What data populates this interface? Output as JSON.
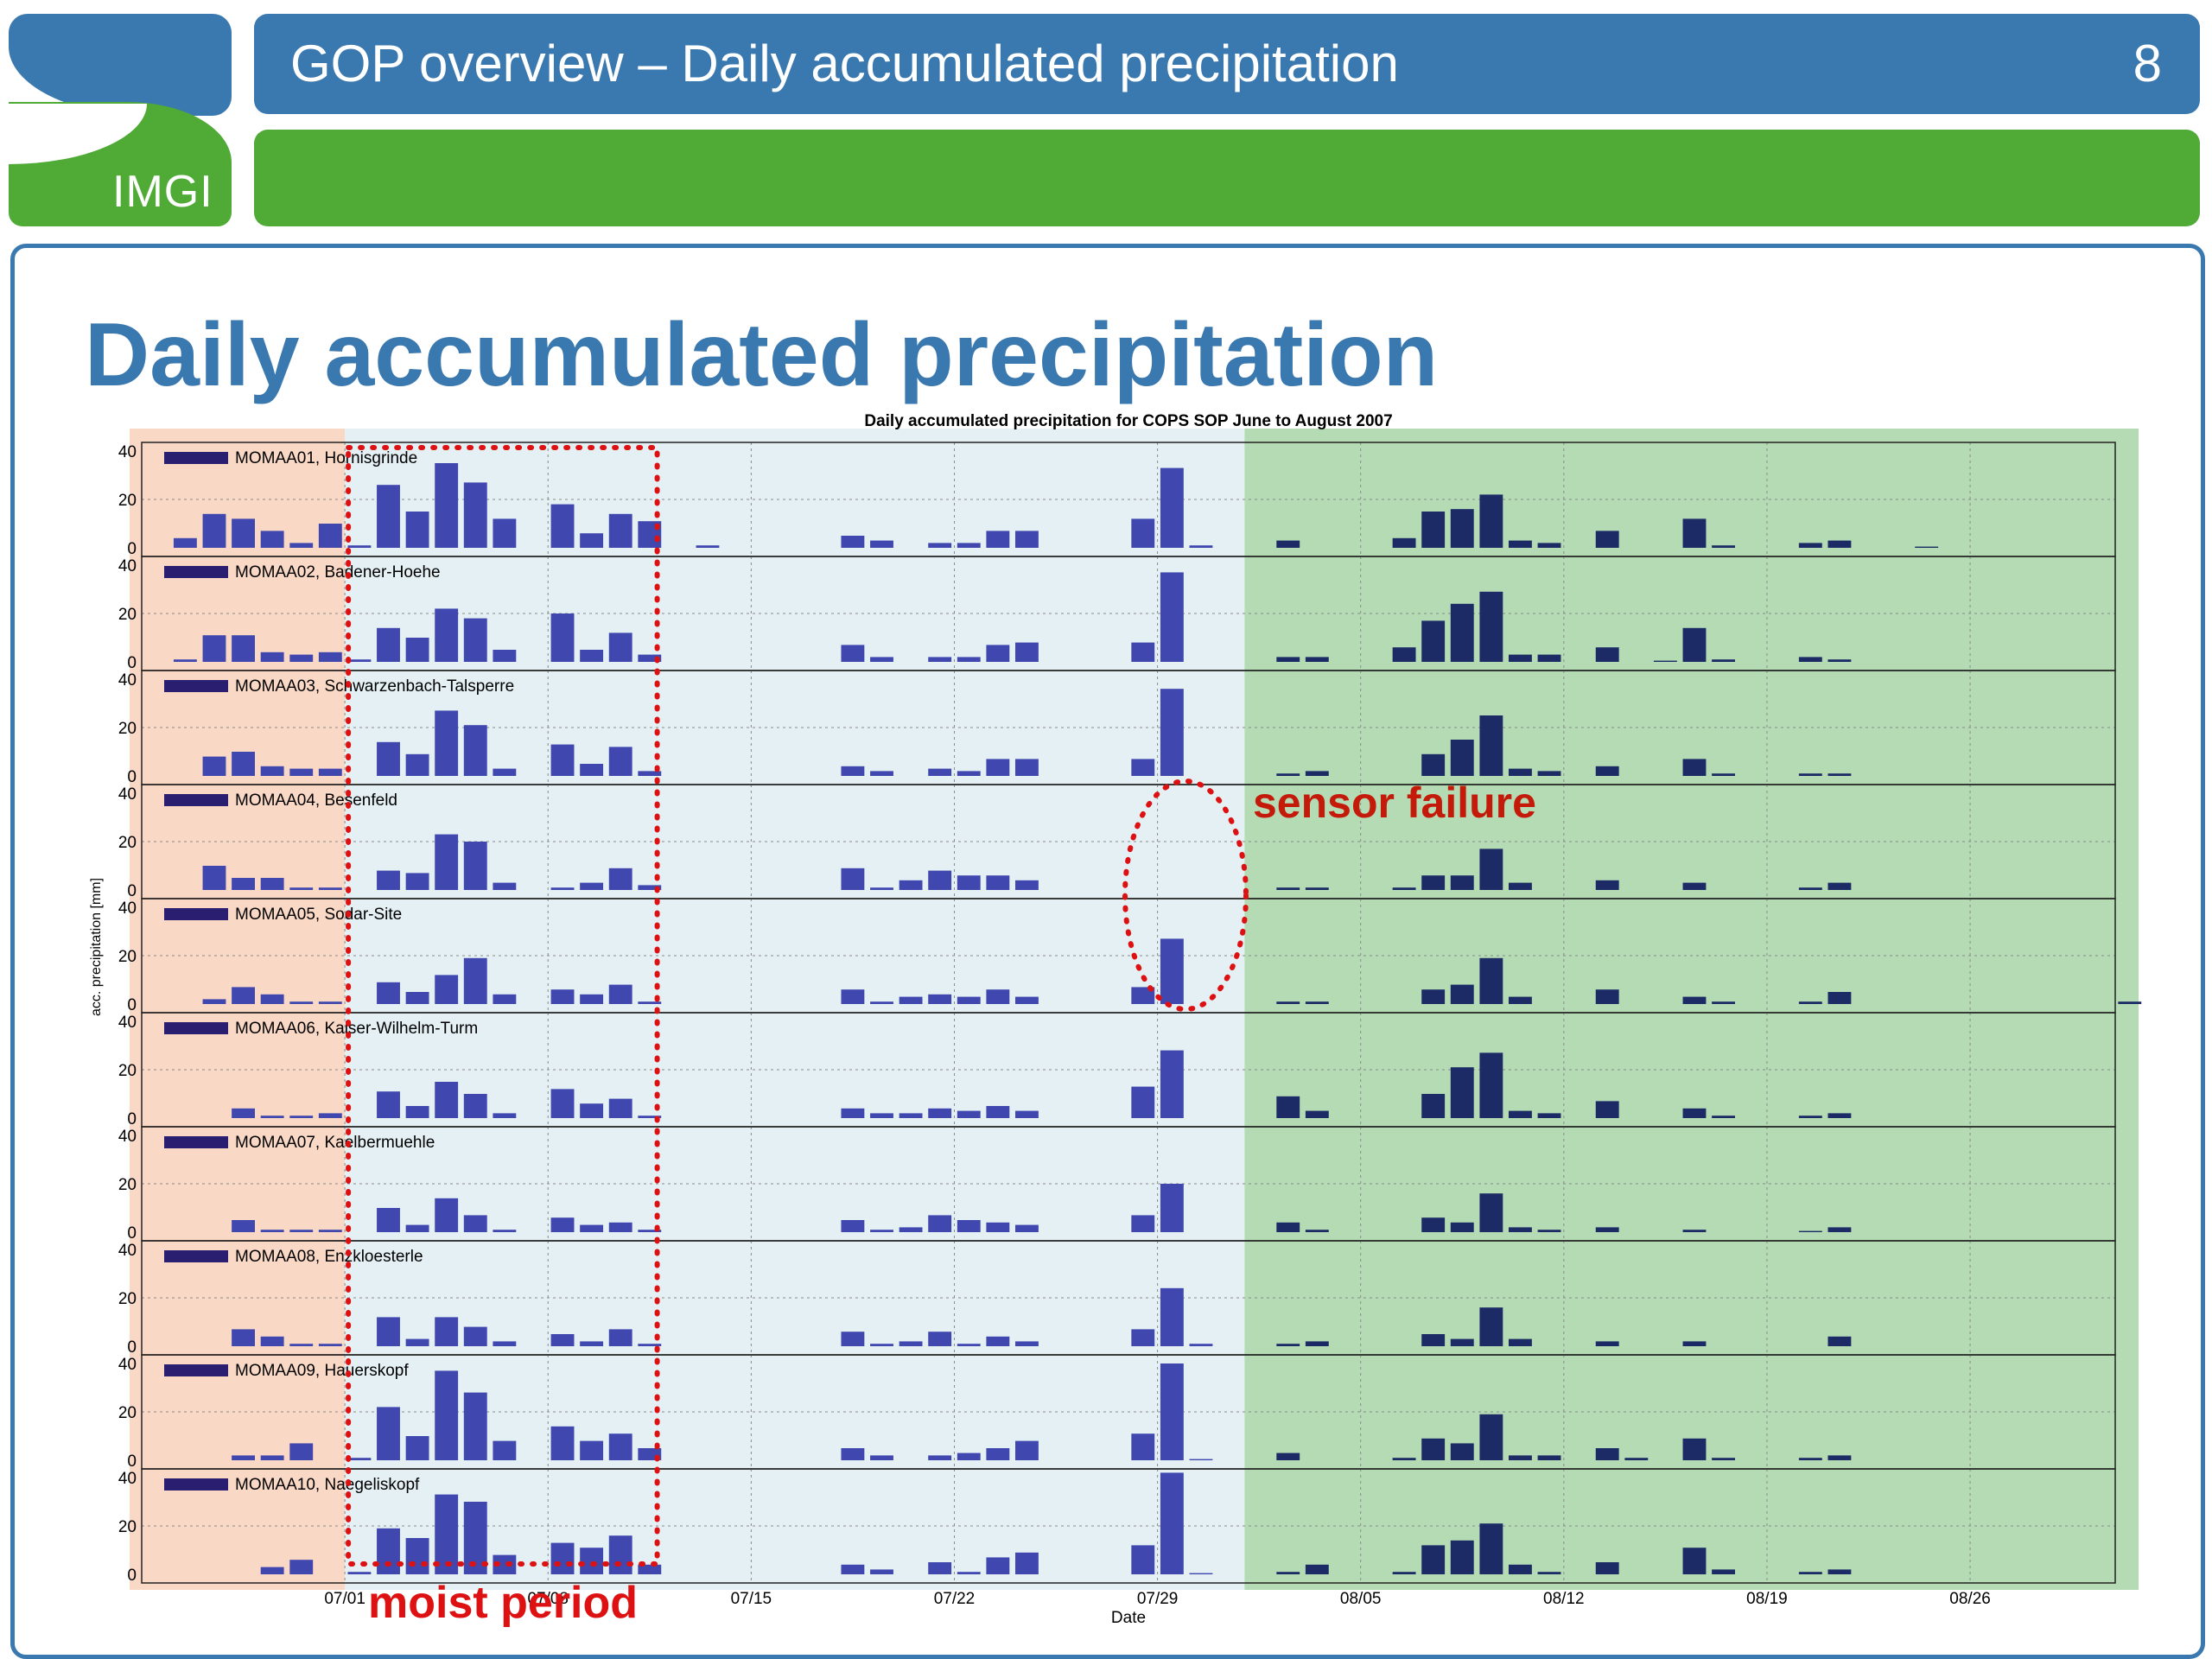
{
  "header": {
    "logo_text": "IMGI",
    "title": "GOP overview – Daily accumulated precipitation",
    "slide_number": "8"
  },
  "heading": "Daily accumulated precipitation",
  "annotations": {
    "sensor_failure": "sensor failure",
    "moist_period": "moist period"
  },
  "colors": {
    "brand_blue": "#3a78b0",
    "brand_green": "#4faa36",
    "bar_fill": "#4048b0",
    "bar_fill_dark": "#1c2a66",
    "legend_swatch": "#2a1e70",
    "shade_june": "#fad8c6",
    "shade_july": "#e5f0f5",
    "shade_august": "#b4dbb4",
    "annotation_red": "#dd1111"
  },
  "chart_data": {
    "type": "bar",
    "title": "Daily accumulated precipitation for COPS SOP June to August 2007",
    "xlabel": "Date",
    "ylabel": "acc. precipitation [mm]",
    "ylim": [
      0,
      40
    ],
    "yticks": [
      0,
      20,
      40
    ],
    "xticks": [
      "07/01",
      "07/08",
      "07/15",
      "07/22",
      "07/29",
      "08/05",
      "08/12",
      "08/19",
      "08/26"
    ],
    "grid": true,
    "x_start": "2007-06-24",
    "x_end": "2007-08-31",
    "shaded_periods": [
      {
        "start": "2007-06-24",
        "end": "2007-07-01",
        "color": "shade_june"
      },
      {
        "start": "2007-07-01",
        "end": "2007-08-01",
        "color": "shade_july"
      },
      {
        "start": "2007-08-01",
        "end": "2007-08-31",
        "color": "shade_august"
      }
    ],
    "moist_period_box": {
      "start": "2007-07-01",
      "end": "2007-07-12"
    },
    "series": [
      {
        "name": "MOMAA01, Hornisgrinde",
        "values": {
          "2007-06-25": 4,
          "2007-06-26": 14,
          "2007-06-27": 12,
          "2007-06-28": 7,
          "2007-06-29": 2,
          "2007-06-30": 10,
          "2007-07-01": 1,
          "2007-07-02": 26,
          "2007-07-03": 15,
          "2007-07-04": 35,
          "2007-07-05": 27,
          "2007-07-06": 12,
          "2007-07-08": 18,
          "2007-07-09": 6,
          "2007-07-10": 14,
          "2007-07-11": 11,
          "2007-07-13": 1,
          "2007-07-18": 5,
          "2007-07-19": 3,
          "2007-07-21": 2,
          "2007-07-22": 2,
          "2007-07-23": 7,
          "2007-07-24": 7,
          "2007-07-28": 12,
          "2007-07-29": 33,
          "2007-07-30": 1,
          "2007-08-02": 3,
          "2007-08-06": 4,
          "2007-08-07": 15,
          "2007-08-08": 16,
          "2007-08-09": 22,
          "2007-08-10": 3,
          "2007-08-11": 2,
          "2007-08-13": 7,
          "2007-08-16": 12,
          "2007-08-17": 1,
          "2007-08-20": 2,
          "2007-08-21": 3,
          "2007-08-24": 0.5
        }
      },
      {
        "name": "MOMAA02, Badener-Hoehe",
        "values": {
          "2007-06-25": 1,
          "2007-06-26": 11,
          "2007-06-27": 11,
          "2007-06-28": 4,
          "2007-06-29": 3,
          "2007-06-30": 4,
          "2007-07-01": 1,
          "2007-07-02": 14,
          "2007-07-03": 10,
          "2007-07-04": 22,
          "2007-07-05": 18,
          "2007-07-06": 5,
          "2007-07-08": 20,
          "2007-07-09": 5,
          "2007-07-10": 12,
          "2007-07-11": 3,
          "2007-07-18": 7,
          "2007-07-19": 2,
          "2007-07-21": 2,
          "2007-07-22": 2,
          "2007-07-23": 7,
          "2007-07-24": 8,
          "2007-07-28": 8,
          "2007-07-29": 37,
          "2007-08-02": 2,
          "2007-08-03": 2,
          "2007-08-06": 6,
          "2007-08-07": 17,
          "2007-08-08": 24,
          "2007-08-09": 29,
          "2007-08-10": 3,
          "2007-08-11": 3,
          "2007-08-13": 6,
          "2007-08-15": 0.5,
          "2007-08-16": 14,
          "2007-08-17": 1,
          "2007-08-20": 2,
          "2007-08-21": 1
        }
      },
      {
        "name": "MOMAA03, Schwarzenbach-Talsperre",
        "values": {
          "2007-06-26": 8,
          "2007-06-27": 10,
          "2007-06-28": 4,
          "2007-06-29": 3,
          "2007-06-30": 3,
          "2007-07-02": 14,
          "2007-07-03": 9,
          "2007-07-04": 27,
          "2007-07-05": 21,
          "2007-07-06": 3,
          "2007-07-08": 13,
          "2007-07-09": 5,
          "2007-07-10": 12,
          "2007-07-11": 2,
          "2007-07-18": 4,
          "2007-07-19": 2,
          "2007-07-21": 3,
          "2007-07-22": 2,
          "2007-07-23": 7,
          "2007-07-24": 7,
          "2007-07-28": 7,
          "2007-07-29": 36,
          "2007-08-02": 1,
          "2007-08-03": 2,
          "2007-08-07": 9,
          "2007-08-08": 15,
          "2007-08-09": 25,
          "2007-08-10": 3,
          "2007-08-11": 2,
          "2007-08-13": 4,
          "2007-08-16": 7,
          "2007-08-17": 1,
          "2007-08-20": 1,
          "2007-08-21": 1
        }
      },
      {
        "name": "MOMAA04, Besenfeld",
        "values": {
          "2007-06-26": 10,
          "2007-06-27": 5,
          "2007-06-28": 5,
          "2007-06-29": 1,
          "2007-06-30": 1,
          "2007-07-02": 8,
          "2007-07-03": 7,
          "2007-07-04": 23,
          "2007-07-05": 20,
          "2007-07-06": 3,
          "2007-07-08": 1,
          "2007-07-09": 3,
          "2007-07-10": 9,
          "2007-07-11": 2,
          "2007-07-18": 9,
          "2007-07-19": 1,
          "2007-07-20": 4,
          "2007-07-21": 8,
          "2007-07-22": 6,
          "2007-07-23": 6,
          "2007-07-24": 4,
          "2007-08-02": 1,
          "2007-08-03": 1,
          "2007-08-06": 1,
          "2007-08-07": 6,
          "2007-08-08": 6,
          "2007-08-09": 17,
          "2007-08-10": 3,
          "2007-08-13": 4,
          "2007-08-16": 3,
          "2007-08-20": 1,
          "2007-08-21": 3
        }
      },
      {
        "name": "MOMAA05, Sodar-Site",
        "values": {
          "2007-06-26": 2,
          "2007-06-27": 7,
          "2007-06-28": 4,
          "2007-06-29": 1,
          "2007-06-30": 1,
          "2007-07-02": 9,
          "2007-07-03": 5,
          "2007-07-04": 12,
          "2007-07-05": 19,
          "2007-07-06": 4,
          "2007-07-08": 6,
          "2007-07-09": 4,
          "2007-07-10": 8,
          "2007-07-11": 1,
          "2007-07-18": 6,
          "2007-07-19": 1,
          "2007-07-20": 3,
          "2007-07-21": 4,
          "2007-07-22": 3,
          "2007-07-23": 6,
          "2007-07-24": 3,
          "2007-07-28": 7,
          "2007-07-29": 27,
          "2007-08-02": 1,
          "2007-08-03": 1,
          "2007-08-07": 6,
          "2007-08-08": 8,
          "2007-08-09": 19,
          "2007-08-10": 3,
          "2007-08-13": 6,
          "2007-08-16": 3,
          "2007-08-17": 1,
          "2007-08-20": 1,
          "2007-08-21": 5,
          "2007-08-31": 1
        }
      },
      {
        "name": "MOMAA06, Kaiser-Wilhelm-Turm",
        "values": {
          "2007-06-27": 4,
          "2007-06-28": 1,
          "2007-06-29": 1,
          "2007-06-30": 2,
          "2007-07-02": 11,
          "2007-07-03": 5,
          "2007-07-04": 15,
          "2007-07-05": 10,
          "2007-07-06": 2,
          "2007-07-08": 12,
          "2007-07-09": 6,
          "2007-07-10": 8,
          "2007-07-11": 1,
          "2007-07-18": 4,
          "2007-07-19": 2,
          "2007-07-20": 2,
          "2007-07-21": 4,
          "2007-07-22": 3,
          "2007-07-23": 5,
          "2007-07-24": 3,
          "2007-07-28": 13,
          "2007-07-29": 28,
          "2007-08-02": 9,
          "2007-08-03": 3,
          "2007-08-07": 10,
          "2007-08-08": 21,
          "2007-08-09": 27,
          "2007-08-10": 3,
          "2007-08-11": 2,
          "2007-08-13": 7,
          "2007-08-16": 4,
          "2007-08-17": 1,
          "2007-08-20": 1,
          "2007-08-21": 2
        }
      },
      {
        "name": "MOMAA07, Kaelbermuehle",
        "values": {
          "2007-06-27": 5,
          "2007-06-28": 1,
          "2007-06-29": 1,
          "2007-06-30": 1,
          "2007-07-02": 10,
          "2007-07-03": 3,
          "2007-07-04": 14,
          "2007-07-05": 7,
          "2007-07-06": 1,
          "2007-07-08": 6,
          "2007-07-09": 3,
          "2007-07-10": 4,
          "2007-07-11": 1,
          "2007-07-18": 5,
          "2007-07-19": 1,
          "2007-07-20": 2,
          "2007-07-21": 7,
          "2007-07-22": 5,
          "2007-07-23": 4,
          "2007-07-24": 3,
          "2007-07-28": 7,
          "2007-07-29": 20,
          "2007-08-02": 4,
          "2007-08-03": 1,
          "2007-08-07": 6,
          "2007-08-08": 4,
          "2007-08-09": 16,
          "2007-08-10": 2,
          "2007-08-11": 1,
          "2007-08-13": 2,
          "2007-08-16": 1,
          "2007-08-20": 0.5,
          "2007-08-21": 2
        }
      },
      {
        "name": "MOMAA08, Enzkloesterle",
        "values": {
          "2007-06-27": 7,
          "2007-06-28": 4,
          "2007-06-29": 1,
          "2007-06-30": 1,
          "2007-07-02": 12,
          "2007-07-03": 3,
          "2007-07-04": 12,
          "2007-07-05": 8,
          "2007-07-06": 2,
          "2007-07-08": 5,
          "2007-07-09": 2,
          "2007-07-10": 7,
          "2007-07-11": 1,
          "2007-07-18": 6,
          "2007-07-19": 1,
          "2007-07-20": 2,
          "2007-07-21": 6,
          "2007-07-22": 1,
          "2007-07-23": 4,
          "2007-07-24": 2,
          "2007-07-28": 7,
          "2007-07-29": 24,
          "2007-07-30": 1,
          "2007-08-02": 1,
          "2007-08-03": 2,
          "2007-08-07": 5,
          "2007-08-08": 3,
          "2007-08-09": 16,
          "2007-08-10": 3,
          "2007-08-13": 2,
          "2007-08-16": 2,
          "2007-08-21": 4
        }
      },
      {
        "name": "MOMAA09, Hauerskopf",
        "values": {
          "2007-06-27": 2,
          "2007-06-28": 2,
          "2007-06-29": 7,
          "2007-07-01": 1,
          "2007-07-02": 22,
          "2007-07-03": 10,
          "2007-07-04": 37,
          "2007-07-05": 28,
          "2007-07-06": 8,
          "2007-07-08": 14,
          "2007-07-09": 8,
          "2007-07-10": 11,
          "2007-07-11": 5,
          "2007-07-18": 5,
          "2007-07-19": 2,
          "2007-07-21": 2,
          "2007-07-22": 3,
          "2007-07-23": 5,
          "2007-07-24": 8,
          "2007-07-28": 11,
          "2007-07-29": 40,
          "2007-07-30": 0.5,
          "2007-08-02": 3,
          "2007-08-06": 1,
          "2007-08-07": 9,
          "2007-08-08": 7,
          "2007-08-09": 19,
          "2007-08-10": 2,
          "2007-08-11": 2,
          "2007-08-13": 5,
          "2007-08-14": 1,
          "2007-08-16": 9,
          "2007-08-17": 1,
          "2007-08-20": 1,
          "2007-08-21": 2
        }
      },
      {
        "name": "MOMAA10, Naegeliskopf",
        "values": {
          "2007-06-28": 3,
          "2007-06-29": 6,
          "2007-07-01": 1,
          "2007-07-02": 19,
          "2007-07-03": 15,
          "2007-07-04": 33,
          "2007-07-05": 30,
          "2007-07-06": 8,
          "2007-07-08": 13,
          "2007-07-09": 11,
          "2007-07-10": 16,
          "2007-07-11": 4,
          "2007-07-18": 4,
          "2007-07-19": 2,
          "2007-07-21": 5,
          "2007-07-22": 1,
          "2007-07-23": 7,
          "2007-07-24": 9,
          "2007-07-28": 12,
          "2007-07-29": 42,
          "2007-07-30": 0.5,
          "2007-08-02": 1,
          "2007-08-03": 4,
          "2007-08-06": 1,
          "2007-08-07": 12,
          "2007-08-08": 14,
          "2007-08-09": 21,
          "2007-08-10": 4,
          "2007-08-11": 1,
          "2007-08-13": 5,
          "2007-08-16": 11,
          "2007-08-17": 2,
          "2007-08-20": 1,
          "2007-08-21": 2
        }
      }
    ]
  }
}
